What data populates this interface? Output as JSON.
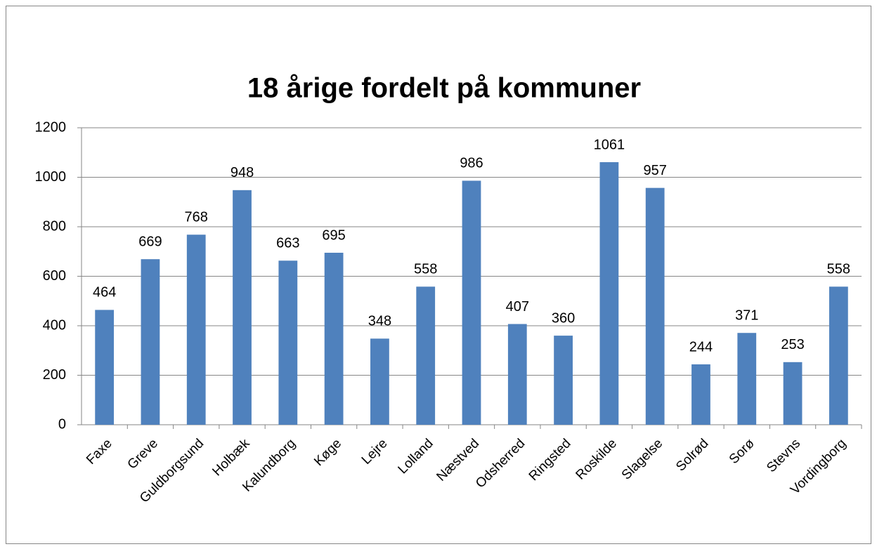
{
  "chart_data": {
    "type": "bar",
    "title": "18 årige fordelt på kommuner",
    "categories": [
      "Faxe",
      "Greve",
      "Guldborgsund",
      "Holbæk",
      "Kalundborg",
      "Køge",
      "Lejre",
      "Lolland",
      "Næstved",
      "Odsherred",
      "Ringsted",
      "Roskilde",
      "Slagelse",
      "Solrød",
      "Sorø",
      "Stevns",
      "Vordingborg"
    ],
    "values": [
      464,
      669,
      768,
      948,
      663,
      695,
      348,
      558,
      986,
      407,
      360,
      1061,
      957,
      244,
      371,
      253,
      558
    ],
    "color": "#4f81bd",
    "ylim": [
      0,
      1200
    ],
    "yticks": [
      0,
      200,
      400,
      600,
      800,
      1000,
      1200
    ],
    "grid": true
  }
}
